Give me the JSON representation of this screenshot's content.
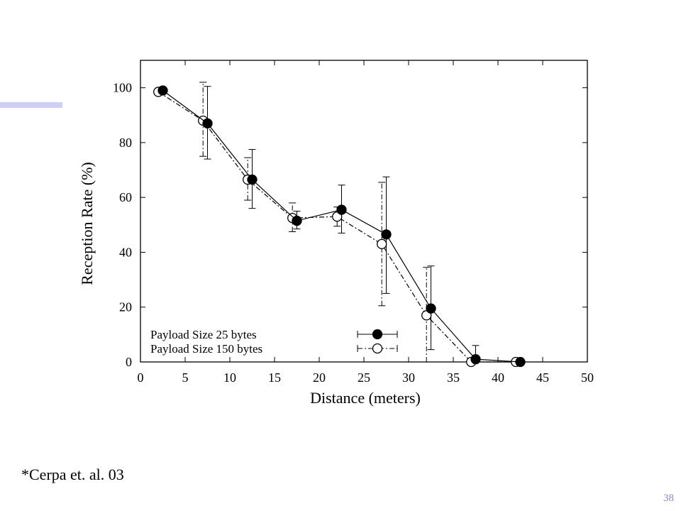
{
  "slide": {
    "citation": "*Cerpa et. al. 03",
    "number": "38",
    "accent_color": "#cfcff5",
    "number_color": "#8888cc"
  },
  "chart_data": {
    "type": "line",
    "title": "",
    "xlabel": "Distance (meters)",
    "ylabel": "Reception Rate (%)",
    "xlim": [
      0,
      50
    ],
    "ylim": [
      0,
      110
    ],
    "xticks": [
      0,
      5,
      10,
      15,
      20,
      25,
      30,
      35,
      40,
      45,
      50
    ],
    "yticks": [
      0,
      20,
      40,
      60,
      80,
      100
    ],
    "grid": false,
    "legend_position": "bottom-left inside plot",
    "error_bars": true,
    "series": [
      {
        "name": "Payload Size 25 bytes",
        "marker": "filled-circle",
        "line": "solid",
        "x": [
          2.5,
          7.5,
          12.5,
          17.5,
          22.5,
          27.5,
          32.5,
          37.5,
          42.5
        ],
        "y": [
          99,
          87,
          66.5,
          51.5,
          55.5,
          46.5,
          19.5,
          1,
          0
        ],
        "err_low": [
          98,
          74,
          56,
          48.5,
          47,
          25,
          4.5,
          0,
          0
        ],
        "err_high": [
          100,
          100.5,
          77.5,
          55,
          64.5,
          67.5,
          35,
          6,
          0
        ]
      },
      {
        "name": "Payload Size 150 bytes",
        "marker": "open-circle",
        "line": "dash-dot",
        "x": [
          2,
          7,
          12,
          17,
          22,
          27,
          32,
          37,
          42
        ],
        "y": [
          98.5,
          88,
          66.5,
          52.5,
          53,
          43,
          17,
          0,
          0
        ],
        "err_low": [
          97.5,
          75,
          59,
          47.5,
          49.5,
          20.5,
          0,
          0,
          0
        ],
        "err_high": [
          99.5,
          102,
          74.5,
          58,
          56.5,
          65.5,
          34.5,
          0.5,
          0
        ]
      }
    ]
  }
}
